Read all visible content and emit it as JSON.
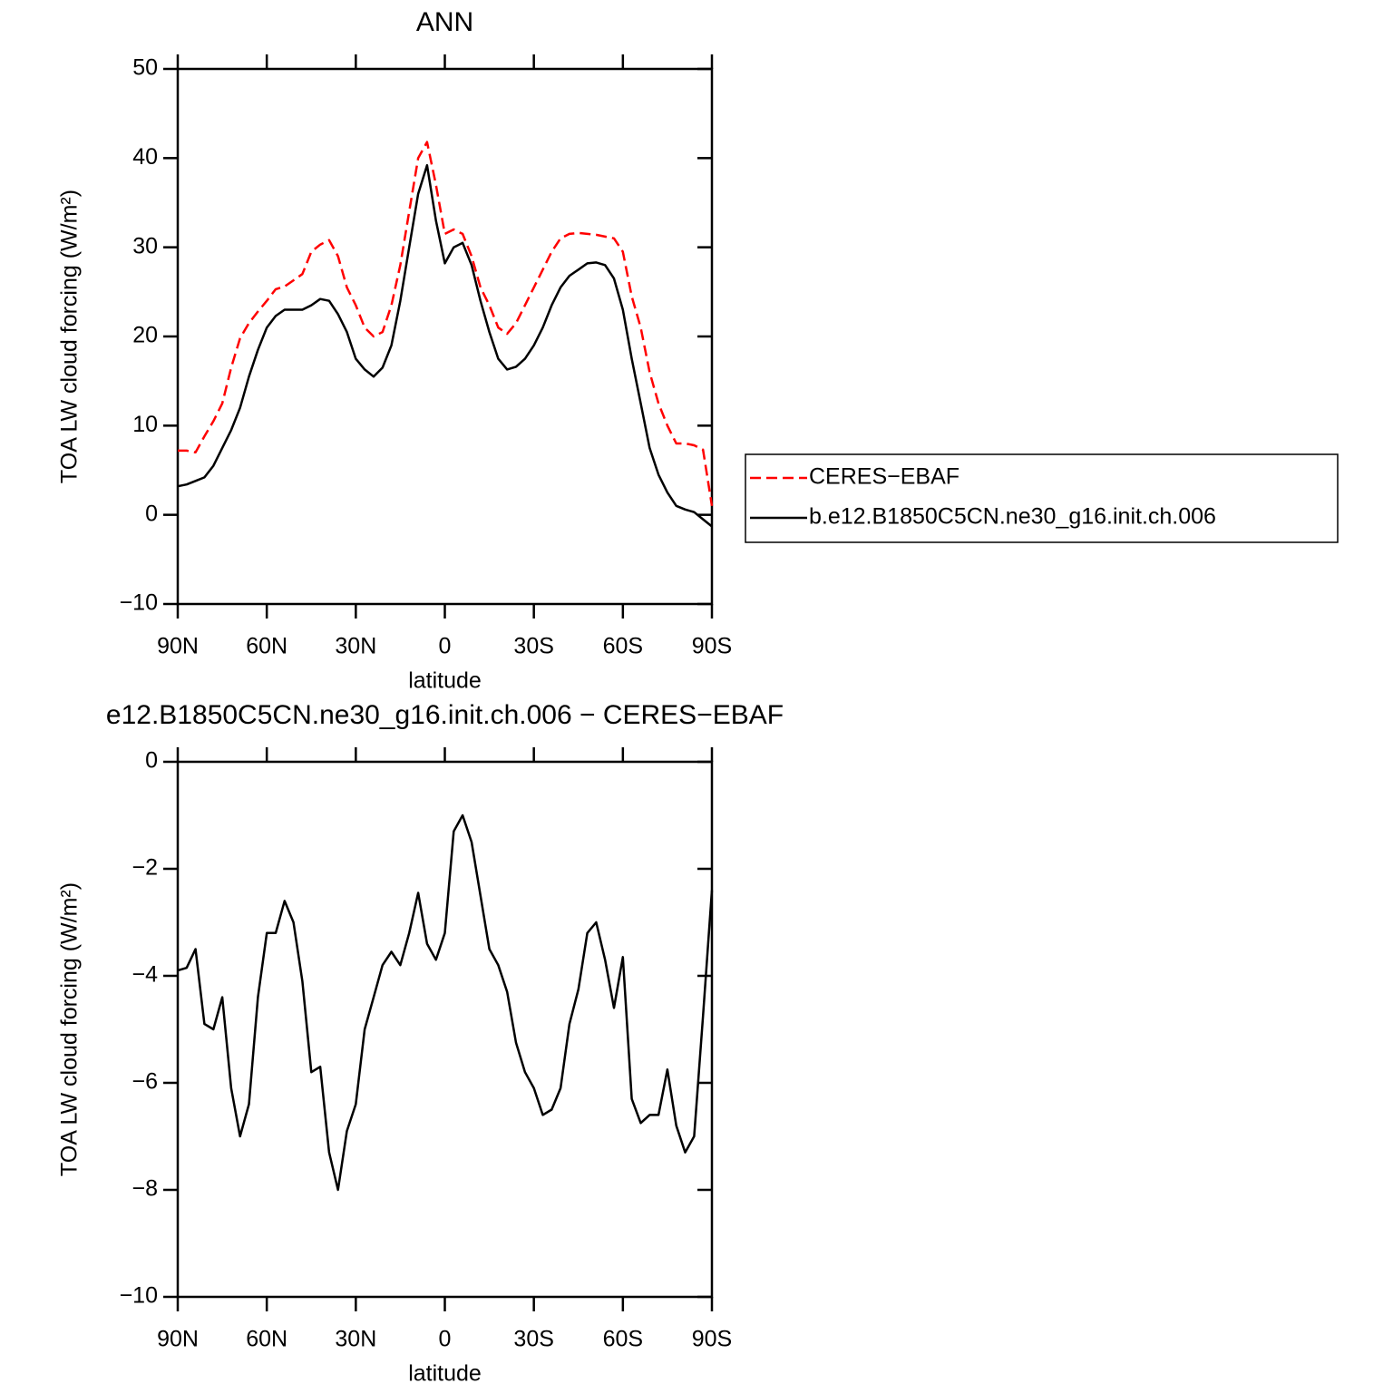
{
  "chart_data": [
    {
      "type": "line",
      "title": "ANN",
      "xlabel": "latitude",
      "ylabel": "TOA LW cloud forcing (W/m²)",
      "x": [
        90,
        87,
        84,
        81,
        78,
        75,
        72,
        69,
        66,
        63,
        60,
        57,
        54,
        51,
        48,
        45,
        42,
        39,
        36,
        33,
        30,
        27,
        24,
        21,
        18,
        15,
        12,
        9,
        6,
        3,
        0,
        -3,
        -6,
        -9,
        -12,
        -15,
        -18,
        -21,
        -24,
        -27,
        -30,
        -33,
        -36,
        -39,
        -42,
        -45,
        -48,
        -51,
        -54,
        -57,
        -60,
        -63,
        -66,
        -69,
        -72,
        -75,
        -78,
        -81,
        -84,
        -87,
        -90
      ],
      "series": [
        {
          "name": "CERES−EBAF",
          "color": "#ff0000",
          "style": "dashed",
          "values": [
            7.2,
            7.2,
            7.0,
            8.8,
            10.5,
            12.5,
            16.5,
            19.8,
            21.5,
            22.8,
            24,
            25.3,
            25.6,
            26.3,
            27,
            29.5,
            30.3,
            30.8,
            29,
            25.5,
            23.5,
            21,
            20,
            20.5,
            23.5,
            28,
            34,
            40,
            41.8,
            37,
            31.5,
            32,
            31.5,
            29,
            25.5,
            23.5,
            21,
            20.3,
            21.5,
            23.5,
            25.5,
            27.5,
            29.5,
            31,
            31.5,
            31.6,
            31.5,
            31.4,
            31.2,
            31,
            29.5,
            24.5,
            21,
            16,
            12.5,
            10,
            8,
            8,
            7.8,
            7.3,
            1
          ]
        },
        {
          "name": "b.e12.B1850C5CN.ne30_g16.init.ch.006",
          "color": "#000000",
          "style": "solid",
          "values": [
            3.2,
            3.4,
            3.8,
            4.2,
            5.5,
            7.5,
            9.5,
            12,
            15.5,
            18.5,
            21,
            22.3,
            23,
            23,
            23,
            23.5,
            24.2,
            24,
            22.5,
            20.5,
            17.5,
            16.3,
            15.5,
            16.5,
            19,
            24,
            30,
            36,
            39.2,
            33,
            28.2,
            30,
            30.5,
            28,
            24,
            20.5,
            17.5,
            16.3,
            16.6,
            17.5,
            19,
            21,
            23.5,
            25.5,
            26.8,
            27.5,
            28.2,
            28.3,
            28,
            26.5,
            23,
            17.5,
            12.5,
            7.5,
            4.5,
            2.5,
            1,
            0.6,
            0.3,
            -0.5,
            -1.3
          ]
        }
      ],
      "xlim": [
        90,
        -90
      ],
      "xticks": [
        {
          "value": 90,
          "label": "90N"
        },
        {
          "value": 60,
          "label": "60N"
        },
        {
          "value": 30,
          "label": "30N"
        },
        0,
        {
          "value": -30,
          "label": "30S"
        },
        {
          "value": -60,
          "label": "60S"
        },
        {
          "value": -90,
          "label": "90S"
        }
      ],
      "ylim": [
        -10,
        50
      ],
      "yticks": [
        {
          "value": -10,
          "label": "−10"
        },
        0,
        10,
        20,
        30,
        40,
        50
      ],
      "legend": "right"
    },
    {
      "type": "line",
      "title": "e12.B1850C5CN.ne30_g16.init.ch.006 − CERES−EBAF",
      "xlabel": "latitude",
      "ylabel": "TOA LW cloud forcing (W/m²)",
      "x": [
        90,
        87,
        84,
        81,
        78,
        75,
        72,
        69,
        66,
        63,
        60,
        57,
        54,
        51,
        48,
        45,
        42,
        39,
        36,
        33,
        30,
        27,
        24,
        21,
        18,
        15,
        12,
        9,
        6,
        3,
        0,
        -3,
        -6,
        -9,
        -12,
        -15,
        -18,
        -21,
        -24,
        -27,
        -30,
        -33,
        -36,
        -39,
        -42,
        -45,
        -48,
        -51,
        -54,
        -57,
        -60,
        -63,
        -66,
        -69,
        -72,
        -75,
        -78,
        -81,
        -84,
        -87,
        -90
      ],
      "series": [
        {
          "color": "#000000",
          "style": "solid",
          "values": [
            -3.9,
            -3.85,
            -3.5,
            -4.9,
            -5.0,
            -4.4,
            -6.1,
            -7.0,
            -6.4,
            -4.4,
            -3.2,
            -3.2,
            -2.6,
            -3.0,
            -4.1,
            -5.8,
            -5.7,
            -7.3,
            -8.0,
            -6.9,
            -6.4,
            -5.0,
            -4.4,
            -3.8,
            -3.55,
            -3.8,
            -3.2,
            -2.45,
            -3.4,
            -3.7,
            -3.2,
            -1.3,
            -1.0,
            -1.5,
            -2.5,
            -3.5,
            -3.8,
            -4.3,
            -5.25,
            -5.8,
            -6.1,
            -6.6,
            -6.5,
            -6.1,
            -4.9,
            -4.25,
            -3.2,
            -3.0,
            -3.7,
            -4.6,
            -3.65,
            -6.3,
            -6.75,
            -6.6,
            -6.6,
            -5.75,
            -6.8,
            -7.3,
            -7.0,
            -4.75,
            -2.4
          ]
        }
      ],
      "xlim": [
        90,
        -90
      ],
      "xticks": [
        {
          "value": 90,
          "label": "90N"
        },
        {
          "value": 60,
          "label": "60N"
        },
        {
          "value": 30,
          "label": "30N"
        },
        0,
        {
          "value": -30,
          "label": "30S"
        },
        {
          "value": -60,
          "label": "60S"
        },
        {
          "value": -90,
          "label": "90S"
        }
      ],
      "ylim": [
        -10,
        0
      ],
      "yticks": [
        {
          "value": -10,
          "label": "−10"
        },
        {
          "value": -8,
          "label": "−8"
        },
        {
          "value": -6,
          "label": "−6"
        },
        {
          "value": -4,
          "label": "−4"
        },
        {
          "value": -2,
          "label": "−2"
        },
        0
      ]
    }
  ]
}
